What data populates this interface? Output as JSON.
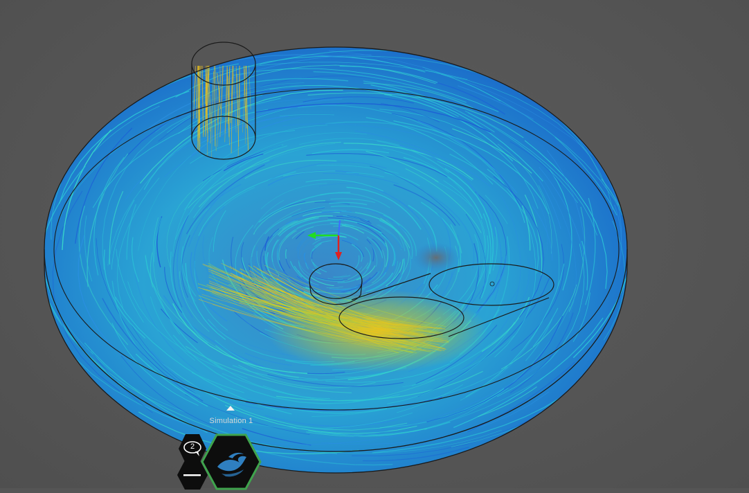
{
  "simulation": {
    "label": "Simulation 1",
    "comment_count": "2"
  },
  "colors": {
    "background": "#555555",
    "streamline_low": "#1d5fd6",
    "streamline_mid": "#2bc4d6",
    "streamline_high": "#f0c419",
    "outline": "#1a1a1a",
    "axis_x": "#22dd22",
    "axis_y": "#dd2222",
    "active_hex_border": "#3fa34d",
    "hex_fill": "#0d0d0d",
    "sim_icon": "#2f7fc0"
  },
  "icons": {
    "comments": "speech-bubble-icon",
    "minimize": "minus-icon",
    "simulation": "flow-waves-icon",
    "expand": "caret-up-icon"
  }
}
